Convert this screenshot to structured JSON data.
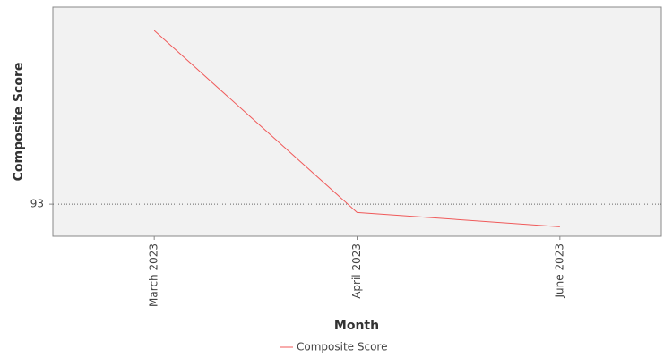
{
  "chart_data": {
    "type": "line",
    "x_label": "Month",
    "y_label": "Composite Score",
    "categories": [
      "March 2023",
      "April 2023",
      "June 2023"
    ],
    "series": [
      {
        "name": "Composite Score",
        "color": "#f05a5a",
        "values": [
          97.0,
          92.81,
          92.48
        ]
      }
    ],
    "ylim": [
      92.26,
      97.54
    ],
    "yticks": [
      93
    ],
    "grid": true
  }
}
